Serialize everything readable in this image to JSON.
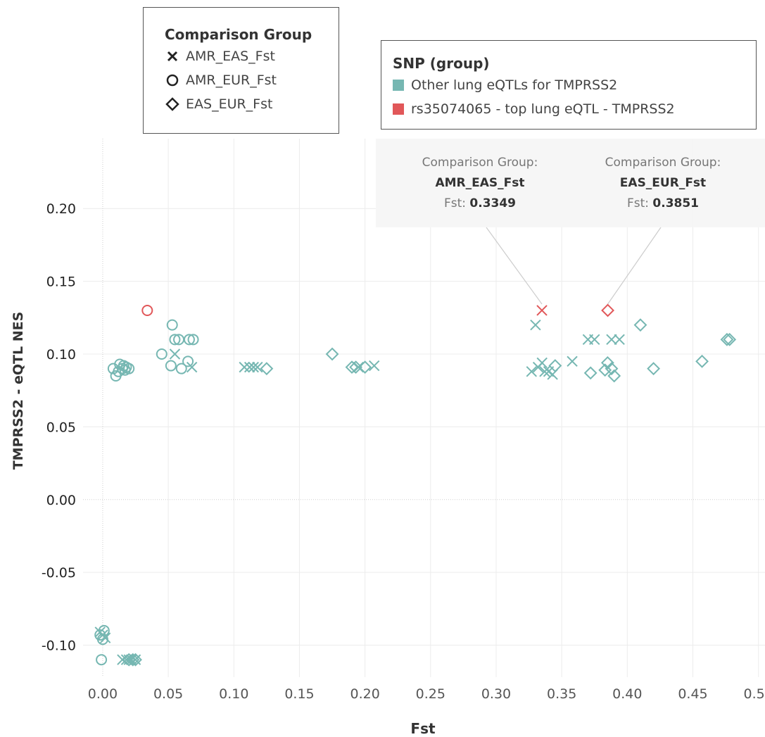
{
  "chart_data": {
    "type": "scatter",
    "xlabel": "Fst",
    "ylabel": "TMPRSS2 - eQTL NES",
    "xlim": [
      -0.015,
      0.505
    ],
    "ylim": [
      -0.122,
      0.248
    ],
    "xticks": [
      "0.00",
      "0.05",
      "0.10",
      "0.15",
      "0.20",
      "0.25",
      "0.30",
      "0.35",
      "0.40",
      "0.45",
      "0.50"
    ],
    "yticks": [
      "-0.10",
      "-0.05",
      "0.00",
      "0.05",
      "0.10",
      "0.15",
      "0.20"
    ],
    "grid": true,
    "shape_legend": {
      "title": "Comparison Group",
      "items": [
        {
          "label": "AMR_EAS_Fst",
          "shape": "x"
        },
        {
          "label": "AMR_EUR_Fst",
          "shape": "circle"
        },
        {
          "label": "EAS_EUR_Fst",
          "shape": "diamond"
        }
      ]
    },
    "color_legend": {
      "title": "SNP (group)",
      "items": [
        {
          "label": "Other lung eQTLs for TMPRSS2",
          "color": "#76b7b2"
        },
        {
          "label": "rs35074065 - top lung eQTL - TMPRSS2",
          "color": "#e15759"
        }
      ]
    },
    "series": [
      {
        "name": "AMR_EAS_Fst",
        "snp": "Other lung eQTLs for TMPRSS2",
        "shape": "x",
        "color": "#76b7b2",
        "points": [
          [
            0.055,
            0.1
          ],
          [
            0.068,
            0.091
          ],
          [
            0.108,
            0.091
          ],
          [
            0.112,
            0.091
          ],
          [
            0.115,
            0.091
          ],
          [
            0.118,
            0.091
          ],
          [
            0.195,
            0.091
          ],
          [
            0.207,
            0.092
          ],
          [
            0.327,
            0.088
          ],
          [
            0.33,
            0.12
          ],
          [
            0.332,
            0.091
          ],
          [
            0.335,
            0.094
          ],
          [
            0.337,
            0.088
          ],
          [
            0.34,
            0.088
          ],
          [
            0.343,
            0.086
          ],
          [
            0.358,
            0.095
          ],
          [
            0.37,
            0.11
          ],
          [
            0.375,
            0.11
          ],
          [
            0.388,
            0.11
          ],
          [
            0.394,
            0.11
          ],
          [
            -0.002,
            -0.091
          ],
          [
            0.0,
            -0.093
          ],
          [
            0.002,
            -0.095
          ],
          [
            0.015,
            -0.11
          ],
          [
            0.018,
            -0.11
          ],
          [
            0.02,
            -0.11
          ],
          [
            0.022,
            -0.11
          ],
          [
            0.025,
            -0.11
          ]
        ]
      },
      {
        "name": "AMR_EUR_Fst",
        "snp": "Other lung eQTLs for TMPRSS2",
        "shape": "circle",
        "color": "#76b7b2",
        "points": [
          [
            0.008,
            0.09
          ],
          [
            0.01,
            0.085
          ],
          [
            0.012,
            0.088
          ],
          [
            0.013,
            0.093
          ],
          [
            0.015,
            0.09
          ],
          [
            0.016,
            0.092
          ],
          [
            0.017,
            0.089
          ],
          [
            0.018,
            0.091
          ],
          [
            0.02,
            0.09
          ],
          [
            0.045,
            0.1
          ],
          [
            0.052,
            0.092
          ],
          [
            0.053,
            0.12
          ],
          [
            0.055,
            0.11
          ],
          [
            0.058,
            0.11
          ],
          [
            0.06,
            0.09
          ],
          [
            0.065,
            0.095
          ],
          [
            0.066,
            0.11
          ],
          [
            0.069,
            0.11
          ],
          [
            -0.002,
            -0.093
          ],
          [
            0.0,
            -0.096
          ],
          [
            0.001,
            -0.09
          ],
          [
            -0.001,
            -0.11
          ]
        ]
      },
      {
        "name": "EAS_EUR_Fst",
        "snp": "Other lung eQTLs for TMPRSS2",
        "shape": "diamond",
        "color": "#76b7b2",
        "points": [
          [
            0.125,
            0.09
          ],
          [
            0.175,
            0.1
          ],
          [
            0.19,
            0.091
          ],
          [
            0.193,
            0.091
          ],
          [
            0.2,
            0.091
          ],
          [
            0.345,
            0.092
          ],
          [
            0.372,
            0.087
          ],
          [
            0.383,
            0.089
          ],
          [
            0.385,
            0.094
          ],
          [
            0.388,
            0.09
          ],
          [
            0.39,
            0.085
          ],
          [
            0.41,
            0.12
          ],
          [
            0.42,
            0.09
          ],
          [
            0.457,
            0.095
          ],
          [
            0.476,
            0.11
          ],
          [
            0.478,
            0.11
          ],
          [
            0.02,
            -0.11
          ],
          [
            0.023,
            -0.11
          ],
          [
            0.025,
            -0.11
          ]
        ]
      },
      {
        "name": "AMR_EAS_Fst",
        "snp": "rs35074065 - top lung eQTL - TMPRSS2",
        "shape": "x",
        "color": "#e15759",
        "points": [
          [
            0.3349,
            0.13
          ]
        ]
      },
      {
        "name": "AMR_EUR_Fst",
        "snp": "rs35074065 - top lung eQTL - TMPRSS2",
        "shape": "circle",
        "color": "#e15759",
        "points": [
          [
            0.034,
            0.13
          ]
        ]
      },
      {
        "name": "EAS_EUR_Fst",
        "snp": "rs35074065 - top lung eQTL - TMPRSS2",
        "shape": "diamond",
        "color": "#e15759",
        "points": [
          [
            0.3851,
            0.13
          ]
        ]
      }
    ],
    "tooltips": [
      {
        "label": "Comparison Group:",
        "group": "AMR_EAS_Fst",
        "fst_label": "Fst:",
        "fst_value": "0.3349",
        "anchor": [
          0.3349,
          0.13
        ]
      },
      {
        "label": "Comparison Group:",
        "group": "EAS_EUR_Fst",
        "fst_label": "Fst:",
        "fst_value": "0.3851",
        "anchor": [
          0.3851,
          0.13
        ]
      }
    ]
  }
}
